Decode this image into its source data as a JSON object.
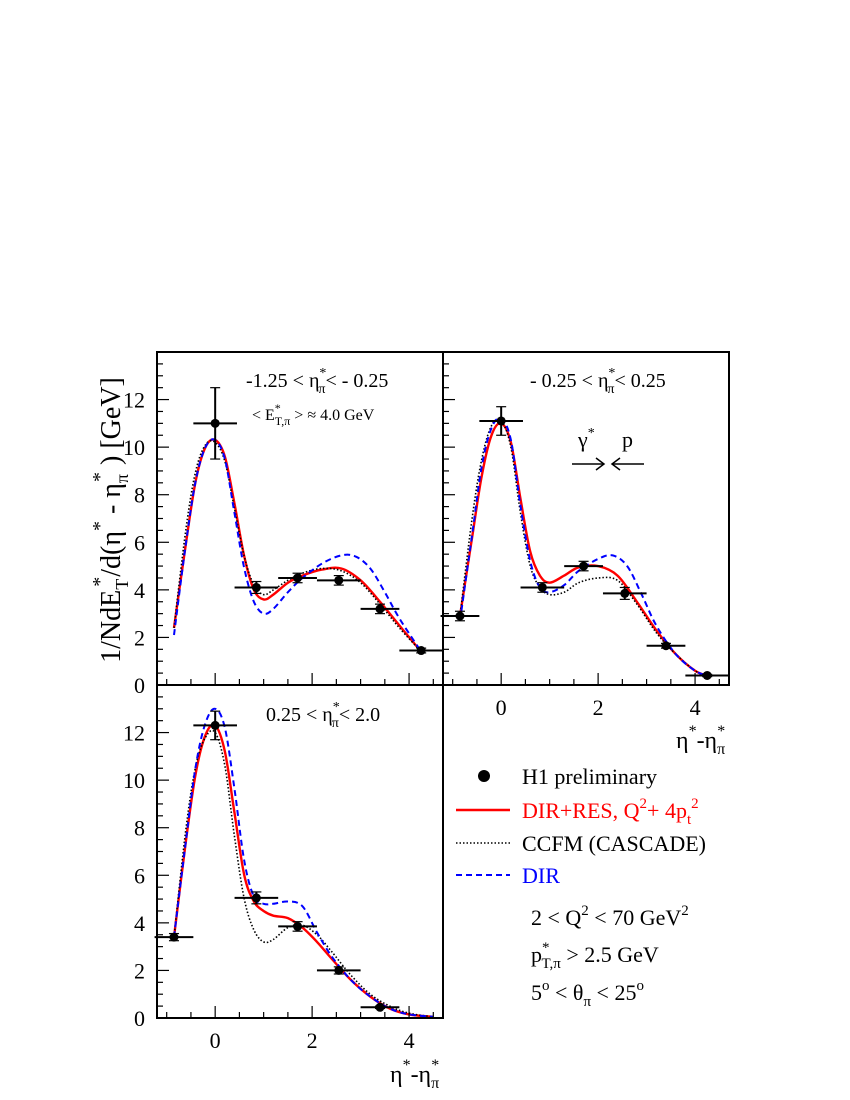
{
  "figure": {
    "ylabel_main": "1/NdE",
    "ylabel_sub1": "T",
    "ylabel_sup1": "*",
    "ylabel_mid": "/d(η",
    "ylabel_sup2": "*",
    "ylabel_mid2": " - η",
    "ylabel_sub3": "π",
    "ylabel_sup3": "*",
    "ylabel_end": " ) [GeV]",
    "xlabel_eta": "η",
    "xlabel_sup": "*",
    "xlabel_minus": "-η",
    "xlabel_sub": "π",
    "xlabel_sup2": "*",
    "beam_gamma": "γ",
    "beam_gamma_sup": "*",
    "beam_p": "p",
    "colors": {
      "h1": "#000000",
      "dirres": "#ff0000",
      "ccfm": "#000000",
      "dir": "#0000ff"
    }
  },
  "legend": {
    "h1": "H1 preliminary",
    "dirres_main": "DIR+RES, Q",
    "dirres_sup1": "2",
    "dirres_mid": "+ 4p",
    "dirres_sub": "t",
    "dirres_sup2": "2",
    "ccfm": "CCFM (CASCADE)",
    "dir": "DIR",
    "cut1_a": "2 < Q",
    "cut1_sup": "2",
    "cut1_b": " < 70 GeV",
    "cut1_sup2": "2",
    "cut2_p": "p",
    "cut2_sup": "*",
    "cut2_sub": "T,π",
    "cut2_b": " > 2.5 GeV",
    "cut3_a": "5",
    "cut3_sup": "o",
    "cut3_b": " < θ",
    "cut3_sub": "π",
    "cut3_c": " < 25",
    "cut3_sup2": "o"
  },
  "chart_data": [
    {
      "type": "scatter",
      "panel": "top-left",
      "label_a": "-1.25 < η",
      "label_sup": "*",
      "label_sub": "π",
      "label_b": "< - 0.25",
      "et_a": "< E",
      "et_sup": "*",
      "et_sub": "T,π",
      "et_b": " > ≈ 4.0 GeV",
      "xlim": [
        -1.2,
        4.7
      ],
      "ylim": [
        0,
        14
      ],
      "y_ticks": [
        0,
        2,
        4,
        6,
        8,
        10,
        12
      ],
      "x_ticks": [],
      "points": [
        {
          "x": 0.0,
          "y": 11.0,
          "xerr": 0.45,
          "yerr": 1.5
        },
        {
          "x": 0.85,
          "y": 4.1,
          "xerr": 0.45,
          "yerr": 0.25
        },
        {
          "x": 1.7,
          "y": 4.5,
          "xerr": 0.4,
          "yerr": 0.2
        },
        {
          "x": 2.55,
          "y": 4.4,
          "xerr": 0.45,
          "yerr": 0.2
        },
        {
          "x": 3.4,
          "y": 3.2,
          "xerr": 0.4,
          "yerr": 0.2
        },
        {
          "x": 4.25,
          "y": 1.45,
          "xerr": 0.45,
          "yerr": 0.1
        }
      ],
      "series": [
        {
          "name": "DIR+RES",
          "style": "dirres",
          "x": [
            -0.85,
            -0.6,
            -0.4,
            -0.2,
            0.0,
            0.2,
            0.4,
            0.6,
            0.8,
            1.0,
            1.2,
            1.5,
            1.8,
            2.2,
            2.6,
            3.0,
            3.4,
            3.8,
            4.25
          ],
          "y": [
            2.4,
            6.0,
            8.6,
            10.0,
            10.3,
            9.6,
            7.6,
            5.4,
            4.0,
            3.6,
            3.8,
            4.3,
            4.6,
            4.85,
            4.9,
            4.4,
            3.5,
            2.5,
            1.4
          ]
        },
        {
          "name": "CCFM",
          "style": "ccfm",
          "x": [
            -0.85,
            -0.6,
            -0.4,
            -0.2,
            0.0,
            0.2,
            0.4,
            0.6,
            0.8,
            1.0,
            1.2,
            1.5,
            1.8,
            2.2,
            2.6,
            3.0,
            3.4,
            3.8,
            4.25
          ],
          "y": [
            2.4,
            6.6,
            9.0,
            10.1,
            10.2,
            9.4,
            7.4,
            5.4,
            4.2,
            3.8,
            4.0,
            4.4,
            4.7,
            4.9,
            4.8,
            4.3,
            3.4,
            2.4,
            1.4
          ]
        },
        {
          "name": "DIR",
          "style": "dir",
          "x": [
            -0.85,
            -0.6,
            -0.4,
            -0.2,
            0.0,
            0.2,
            0.4,
            0.6,
            0.8,
            1.0,
            1.2,
            1.5,
            1.8,
            2.2,
            2.6,
            2.9,
            3.2,
            3.5,
            3.8,
            4.25
          ],
          "y": [
            2.1,
            6.0,
            8.6,
            10.0,
            10.3,
            9.5,
            7.2,
            4.9,
            3.5,
            3.0,
            3.2,
            3.9,
            4.5,
            5.1,
            5.45,
            5.4,
            4.9,
            3.9,
            2.8,
            1.4
          ]
        }
      ]
    },
    {
      "type": "scatter",
      "panel": "top-right",
      "label_a": "- 0.25 < η",
      "label_sup": "*",
      "label_sub": "π",
      "label_b": "< 0.25",
      "xlim": [
        -1.2,
        4.7
      ],
      "ylim": [
        0,
        14
      ],
      "y_ticks": [],
      "x_ticks": [
        0,
        2,
        4
      ],
      "points": [
        {
          "x": -0.85,
          "y": 2.9,
          "xerr": 0.4,
          "yerr": 0.2
        },
        {
          "x": 0.0,
          "y": 11.1,
          "xerr": 0.45,
          "yerr": 0.6
        },
        {
          "x": 0.85,
          "y": 4.1,
          "xerr": 0.45,
          "yerr": 0.2
        },
        {
          "x": 1.7,
          "y": 5.0,
          "xerr": 0.4,
          "yerr": 0.2
        },
        {
          "x": 2.55,
          "y": 3.85,
          "xerr": 0.45,
          "yerr": 0.25
        },
        {
          "x": 3.4,
          "y": 1.65,
          "xerr": 0.4,
          "yerr": 0.1
        },
        {
          "x": 4.25,
          "y": 0.4,
          "xerr": 0.45,
          "yerr": 0.05
        }
      ],
      "series": [
        {
          "name": "DIR+RES",
          "style": "dirres",
          "x": [
            -0.85,
            -0.6,
            -0.4,
            -0.2,
            0.0,
            0.2,
            0.4,
            0.6,
            0.8,
            1.0,
            1.3,
            1.6,
            2.0,
            2.4,
            2.8,
            3.2,
            3.6,
            4.0,
            4.25
          ],
          "y": [
            2.9,
            6.2,
            8.8,
            10.5,
            11.0,
            10.2,
            7.8,
            5.6,
            4.6,
            4.3,
            4.6,
            4.95,
            5.0,
            4.6,
            3.5,
            2.3,
            1.3,
            0.6,
            0.4
          ]
        },
        {
          "name": "CCFM",
          "style": "ccfm",
          "x": [
            -0.85,
            -0.6,
            -0.4,
            -0.2,
            0.0,
            0.2,
            0.4,
            0.6,
            0.8,
            1.0,
            1.3,
            1.6,
            2.0,
            2.4,
            2.8,
            3.2,
            3.6,
            4.0,
            4.25
          ],
          "y": [
            2.9,
            7.0,
            9.5,
            10.9,
            11.1,
            10.0,
            7.2,
            5.0,
            4.1,
            3.8,
            3.9,
            4.3,
            4.5,
            4.4,
            3.4,
            2.2,
            1.3,
            0.6,
            0.4
          ]
        },
        {
          "name": "DIR",
          "style": "dir",
          "x": [
            -0.85,
            -0.6,
            -0.4,
            -0.2,
            0.0,
            0.2,
            0.4,
            0.6,
            0.8,
            1.0,
            1.3,
            1.6,
            2.0,
            2.3,
            2.6,
            2.9,
            3.2,
            3.6,
            4.0,
            4.25
          ],
          "y": [
            2.7,
            6.3,
            9.2,
            10.8,
            11.2,
            10.3,
            7.5,
            5.2,
            4.1,
            3.9,
            4.2,
            4.8,
            5.3,
            5.45,
            5.0,
            3.8,
            2.5,
            1.3,
            0.6,
            0.4
          ]
        }
      ]
    },
    {
      "type": "scatter",
      "panel": "bottom-left",
      "label_a": "0.25 < η",
      "label_sup": "*",
      "label_sub": "π",
      "label_b": "< 2.0",
      "xlim": [
        -1.2,
        4.7
      ],
      "ylim": [
        0,
        14
      ],
      "y_ticks": [
        0,
        2,
        4,
        6,
        8,
        10,
        12
      ],
      "x_ticks": [
        0,
        2,
        4
      ],
      "points": [
        {
          "x": -0.85,
          "y": 3.4,
          "xerr": 0.4,
          "yerr": 0.15
        },
        {
          "x": 0.0,
          "y": 12.3,
          "xerr": 0.45,
          "yerr": 0.6
        },
        {
          "x": 0.85,
          "y": 5.05,
          "xerr": 0.45,
          "yerr": 0.25
        },
        {
          "x": 1.7,
          "y": 3.85,
          "xerr": 0.4,
          "yerr": 0.2
        },
        {
          "x": 2.55,
          "y": 2.0,
          "xerr": 0.45,
          "yerr": 0.15
        },
        {
          "x": 3.4,
          "y": 0.45,
          "xerr": 0.4,
          "yerr": 0.05
        }
      ],
      "series": [
        {
          "name": "DIR+RES",
          "style": "dirres",
          "x": [
            -0.85,
            -0.6,
            -0.4,
            -0.2,
            0.0,
            0.2,
            0.4,
            0.6,
            0.8,
            1.0,
            1.2,
            1.5,
            1.8,
            2.1,
            2.4,
            2.8,
            3.2,
            3.6,
            4.0,
            4.5
          ],
          "y": [
            3.4,
            7.5,
            10.3,
            11.9,
            12.3,
            11.2,
            8.6,
            6.0,
            4.9,
            4.5,
            4.3,
            4.2,
            3.8,
            3.2,
            2.5,
            1.6,
            0.9,
            0.4,
            0.15,
            0.05
          ]
        },
        {
          "name": "CCFM",
          "style": "ccfm",
          "x": [
            -0.85,
            -0.6,
            -0.4,
            -0.2,
            0.0,
            0.2,
            0.4,
            0.6,
            0.8,
            1.0,
            1.2,
            1.5,
            1.8,
            2.1,
            2.4,
            2.8,
            3.2,
            3.6,
            4.0,
            4.5
          ],
          "y": [
            3.4,
            8.0,
            10.6,
            11.8,
            12.0,
            10.6,
            7.6,
            5.0,
            3.7,
            3.2,
            3.3,
            3.8,
            3.9,
            3.5,
            2.8,
            1.8,
            1.0,
            0.5,
            0.2,
            0.05
          ]
        },
        {
          "name": "DIR",
          "style": "dir",
          "x": [
            -0.85,
            -0.6,
            -0.4,
            -0.2,
            0.0,
            0.2,
            0.4,
            0.6,
            0.8,
            1.0,
            1.2,
            1.5,
            1.8,
            2.1,
            2.4,
            2.8,
            3.2,
            3.6,
            4.0,
            4.5
          ],
          "y": [
            3.4,
            7.5,
            10.6,
            12.4,
            13.0,
            12.2,
            9.6,
            6.6,
            5.1,
            4.8,
            4.8,
            4.9,
            4.7,
            3.6,
            2.6,
            1.6,
            0.9,
            0.4,
            0.15,
            0.05
          ]
        }
      ]
    }
  ]
}
